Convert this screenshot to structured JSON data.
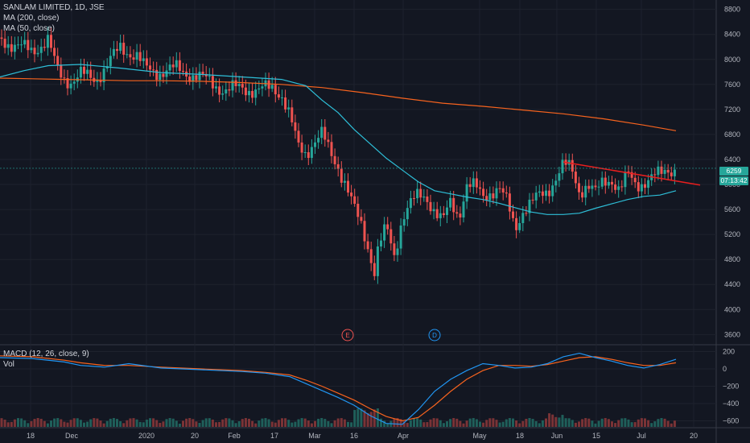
{
  "legend": {
    "title": "SANLAM LIMITED, 1D, JSE",
    "ma200": "MA (200, close)",
    "ma50": "MA (50, close)",
    "macd": "MACD (12, 26, close, 9)",
    "vol": "Vol"
  },
  "price_tag": {
    "last": "6259",
    "countdown": "07:13:42"
  },
  "markers": [
    {
      "label": "E",
      "color": "#ef5350"
    },
    {
      "label": "D",
      "color": "#2196f3"
    }
  ],
  "colors": {
    "background": "#131722",
    "grid": "#1e222d",
    "up": "#26a69a",
    "down": "#ef5350",
    "ma200": "#f7631e",
    "ma50": "#2ebfd8",
    "macd": "#2196f3",
    "signal": "#f7631e",
    "trendline": "#e91e1e",
    "text": "#b2b5be"
  },
  "chart_data": [
    {
      "type": "candlestick",
      "title": "SANLAM LIMITED, 1D, JSE",
      "y_ticks": [
        "8800",
        "8400",
        "8000",
        "7600",
        "7200",
        "6800",
        "6400",
        "6000",
        "5600",
        "5200",
        "4800",
        "4400",
        "4000",
        "3600"
      ],
      "x_ticks": [
        "18",
        "Dec",
        "2020",
        "20",
        "Feb",
        "17",
        "Mar",
        "16",
        "Apr",
        "May",
        "18",
        "Jun",
        "15",
        "Jul",
        "20"
      ],
      "ylim": [
        3450,
        8950
      ],
      "series": [
        {
          "name": "MA (200, close)",
          "x": [
            0,
            40,
            80,
            120,
            160,
            200,
            250,
            300,
            350,
            400,
            450,
            500,
            550,
            600,
            650,
            700,
            750,
            800,
            840
          ],
          "values": [
            7700,
            7690,
            7680,
            7670,
            7660,
            7660,
            7650,
            7630,
            7600,
            7550,
            7470,
            7380,
            7300,
            7250,
            7190,
            7130,
            7050,
            6950,
            6860
          ]
        },
        {
          "name": "MA (50, close)",
          "x": [
            0,
            30,
            60,
            100,
            150,
            200,
            250,
            300,
            350,
            380,
            400,
            420,
            440,
            460,
            480,
            500,
            520,
            540,
            560,
            580,
            600,
            620,
            640,
            660,
            680,
            700,
            720,
            740,
            760,
            780,
            800,
            820,
            840
          ],
          "values": [
            7720,
            7820,
            7900,
            7920,
            7860,
            7790,
            7760,
            7720,
            7680,
            7580,
            7350,
            7150,
            6880,
            6650,
            6420,
            6230,
            6040,
            5900,
            5850,
            5800,
            5760,
            5700,
            5630,
            5560,
            5520,
            5520,
            5540,
            5620,
            5690,
            5760,
            5810,
            5830,
            5900
          ]
        },
        {
          "name": "trendline",
          "x": [
            700,
            870
          ],
          "values": [
            6360,
            5990
          ]
        },
        {
          "name": "last_close",
          "x": [
            840
          ],
          "values": [
            6259
          ]
        }
      ]
    },
    {
      "type": "line",
      "title": "MACD (12, 26, close, 9)",
      "y_ticks": [
        "200",
        "0",
        "−200",
        "−400",
        "−600"
      ],
      "ylim": [
        -670,
        260
      ],
      "series": [
        {
          "name": "MACD",
          "x": [
            0,
            40,
            80,
            100,
            130,
            160,
            200,
            250,
            300,
            330,
            360,
            380,
            400,
            420,
            440,
            460,
            480,
            500,
            520,
            540,
            560,
            580,
            600,
            620,
            640,
            660,
            680,
            700,
            720,
            740,
            760,
            780,
            800,
            820,
            840
          ],
          "values": [
            130,
            120,
            80,
            40,
            20,
            60,
            10,
            -10,
            -30,
            -50,
            -90,
            -170,
            -250,
            -330,
            -420,
            -540,
            -630,
            -640,
            -470,
            -260,
            -120,
            -20,
            60,
            40,
            10,
            20,
            60,
            140,
            180,
            130,
            90,
            40,
            10,
            50,
            110
          ]
        },
        {
          "name": "Signal",
          "x": [
            0,
            40,
            80,
            100,
            130,
            160,
            200,
            250,
            300,
            330,
            360,
            380,
            400,
            420,
            440,
            460,
            480,
            500,
            520,
            540,
            560,
            580,
            600,
            620,
            640,
            660,
            680,
            700,
            720,
            740,
            760,
            780,
            800,
            820,
            840
          ],
          "values": [
            150,
            140,
            100,
            70,
            40,
            40,
            20,
            0,
            -20,
            -40,
            -70,
            -130,
            -200,
            -280,
            -360,
            -460,
            -550,
            -600,
            -560,
            -420,
            -260,
            -120,
            -20,
            40,
            40,
            30,
            50,
            90,
            130,
            140,
            110,
            70,
            40,
            40,
            70
          ]
        }
      ]
    }
  ]
}
